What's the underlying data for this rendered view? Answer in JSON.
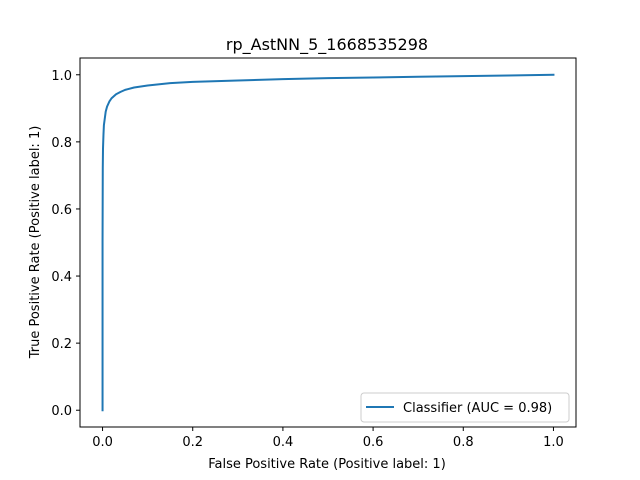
{
  "chart_data": {
    "type": "line",
    "title": "rp_AstNN_5_1668535298",
    "xlabel": "False Positive Rate (Positive label: 1)",
    "ylabel": "True Positive Rate (Positive label: 1)",
    "xlim": [
      -0.05,
      1.05
    ],
    "ylim": [
      -0.05,
      1.05
    ],
    "xticks": [
      0.0,
      0.2,
      0.4,
      0.6,
      0.8,
      1.0
    ],
    "yticks": [
      0.0,
      0.2,
      0.4,
      0.6,
      0.8,
      1.0
    ],
    "xtick_labels": [
      "0.0",
      "0.2",
      "0.4",
      "0.6",
      "0.8",
      "1.0"
    ],
    "ytick_labels": [
      "0.0",
      "0.2",
      "0.4",
      "0.6",
      "0.8",
      "1.0"
    ],
    "grid": false,
    "legend_position": "bottom-right",
    "series": [
      {
        "name": "Classifier (AUC = 0.98)",
        "color": "#1f77b4",
        "x": [
          0.0,
          0.0,
          0.0005,
          0.001,
          0.002,
          0.003,
          0.005,
          0.007,
          0.01,
          0.015,
          0.02,
          0.03,
          0.04,
          0.05,
          0.07,
          0.1,
          0.15,
          0.2,
          0.3,
          0.4,
          0.5,
          0.6,
          0.7,
          0.8,
          0.9,
          1.0
        ],
        "y": [
          0.0,
          0.5,
          0.72,
          0.78,
          0.82,
          0.85,
          0.87,
          0.89,
          0.905,
          0.92,
          0.93,
          0.942,
          0.949,
          0.955,
          0.962,
          0.968,
          0.975,
          0.979,
          0.983,
          0.987,
          0.99,
          0.992,
          0.994,
          0.996,
          0.998,
          1.0
        ]
      }
    ]
  }
}
